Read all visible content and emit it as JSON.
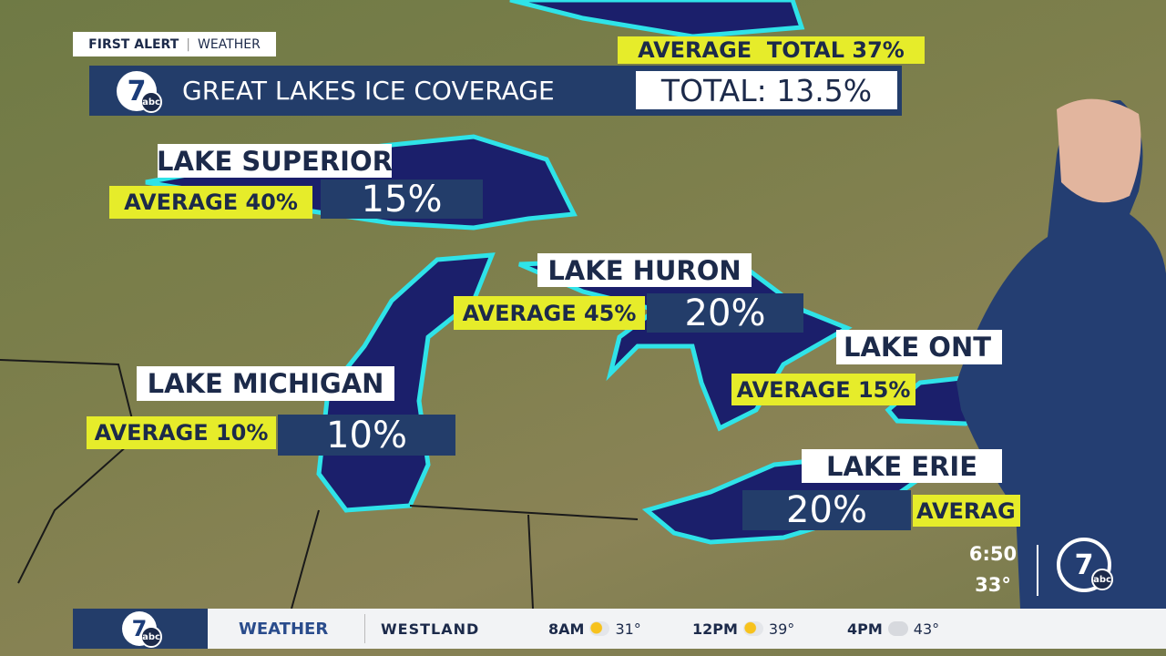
{
  "header": {
    "brand": "FIRST ALERT",
    "section": "WEATHER",
    "title": "GREAT LAKES ICE COVERAGE",
    "average_total": "AVERAGE  TOTAL 37%",
    "total": "TOTAL: 13.5%"
  },
  "logo": {
    "number": "7",
    "network": "abc"
  },
  "lakes": [
    {
      "name": "LAKE SUPERIOR",
      "average": "AVERAGE 40%",
      "coverage": "15%"
    },
    {
      "name": "LAKE HURON",
      "average": "AVERAGE 45%",
      "coverage": "20%"
    },
    {
      "name": "LAKE MICHIGAN",
      "average": "AVERAGE 10%",
      "coverage": "10%"
    },
    {
      "name": "LAKE ONT",
      "average": "AVERAGE 15%"
    },
    {
      "name": "LAKE ERIE",
      "average": "AVERAG",
      "coverage": "20%"
    }
  ],
  "clock": {
    "time": "6:50",
    "temperature": "33°"
  },
  "ticker": {
    "label": "WEATHER",
    "location": "WESTLAND",
    "forecast": [
      {
        "time": "8AM",
        "temperature": "31°"
      },
      {
        "time": "12PM",
        "temperature": "39°"
      },
      {
        "time": "4PM",
        "temperature": "43°"
      }
    ]
  }
}
